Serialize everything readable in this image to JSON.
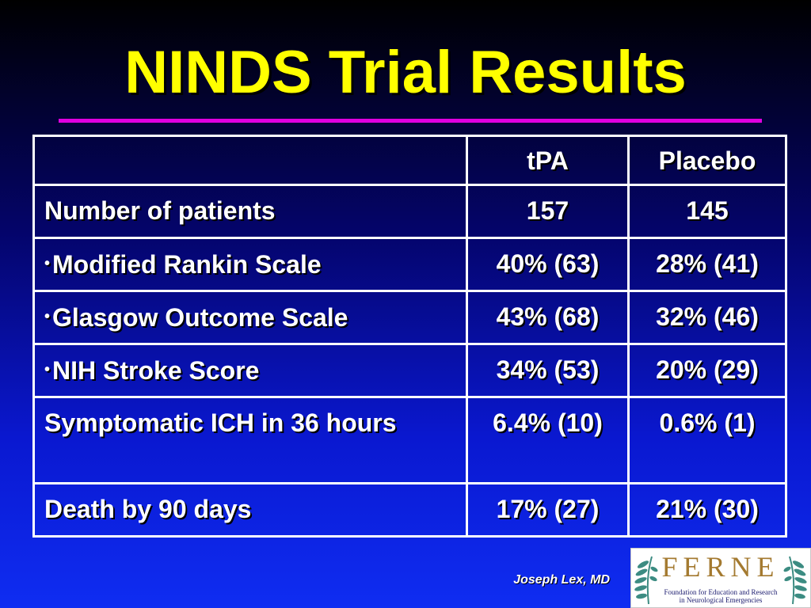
{
  "slide": {
    "title": "NINDS Trial Results",
    "author": "Joseph Lex, MD"
  },
  "table": {
    "columns": [
      "",
      "tPA",
      "Placebo"
    ],
    "rows": [
      {
        "label": "Number of patients",
        "bullet": false,
        "tpa": "157",
        "placebo": "145"
      },
      {
        "label": "Modified Rankin Scale",
        "bullet": true,
        "tpa": "40% (63)",
        "placebo": "28% (41)"
      },
      {
        "label": "Glasgow Outcome Scale",
        "bullet": true,
        "tpa": "43% (68)",
        "placebo": "32% (46)"
      },
      {
        "label": "NIH Stroke Score",
        "bullet": true,
        "tpa": "34% (53)",
        "placebo": "20% (29)"
      },
      {
        "label": "Symptomatic ICH in 36 hours",
        "bullet": false,
        "tpa": "6.4% (10)",
        "placebo": "0.6% (1)"
      },
      {
        "label": "Death by 90 days",
        "bullet": false,
        "tpa": "17% (27)",
        "placebo": "21% (30)"
      }
    ]
  },
  "logo": {
    "wordmark": "FERNE",
    "line1": "Foundation for Education and Research",
    "line2": "in Neurological Emergencies",
    "color_gold": "#a47a30",
    "color_teal": "#3c8c82",
    "color_navy": "#1a1a6e",
    "icon": "leaf-branch-icon"
  },
  "colors": {
    "title": "#ffff00",
    "rule": "#e000e0",
    "text": "#ffffff",
    "background_top": "#000000",
    "background_bottom": "#0f2df2"
  }
}
